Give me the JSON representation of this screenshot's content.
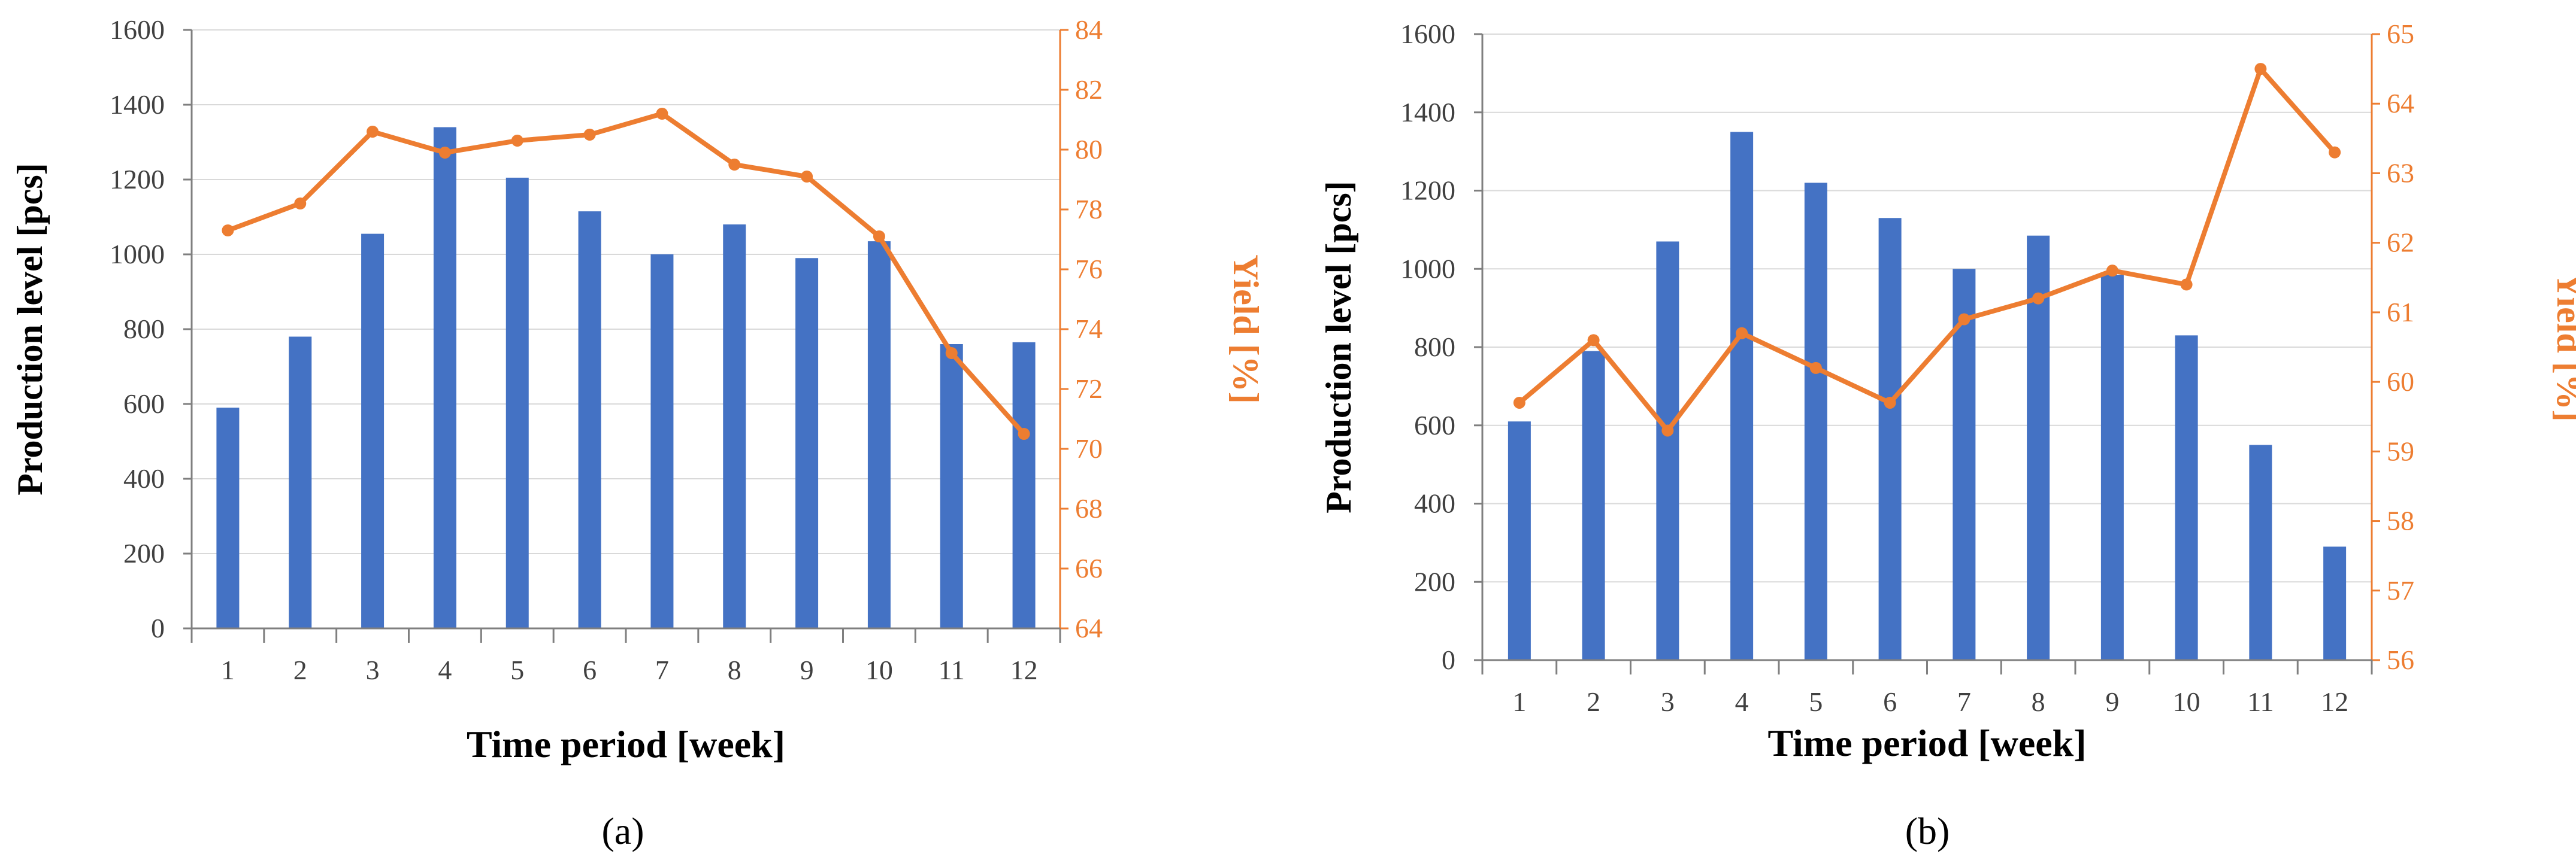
{
  "colors": {
    "bar": "#4472C4",
    "line": "#ED7D31",
    "grid": "#D9D9D9",
    "axis": "#7F7F7F"
  },
  "chart_data": [
    {
      "type": "bar+line",
      "caption": "(a)",
      "categories": [
        "1",
        "2",
        "3",
        "4",
        "5",
        "6",
        "7",
        "8",
        "9",
        "10",
        "11",
        "12"
      ],
      "xlabel": "Time period [week]",
      "ylabel": "Production level [pcs]",
      "y2label": "Yield [%]",
      "ylim": [
        0,
        1600
      ],
      "ytick_step": 200,
      "y2lim": [
        64,
        84
      ],
      "y2tick_step": 2,
      "grid": true,
      "series": [
        {
          "kind": "bar",
          "axis": "left",
          "values": [
            590,
            780,
            1055,
            1340,
            1205,
            1115,
            1000,
            1080,
            990,
            1035,
            760,
            765
          ]
        },
        {
          "kind": "line",
          "axis": "right",
          "values": [
            77.3,
            78.2,
            80.6,
            79.9,
            80.3,
            80.5,
            81.2,
            79.5,
            79.1,
            77.1,
            73.2,
            70.5
          ]
        }
      ]
    },
    {
      "type": "bar+line",
      "caption": "(b)",
      "categories": [
        "1",
        "2",
        "3",
        "4",
        "5",
        "6",
        "7",
        "8",
        "9",
        "10",
        "11",
        "12"
      ],
      "xlabel": "Time period [week]",
      "ylabel": "Production level [pcs]",
      "y2label": "Yield [%]",
      "ylim": [
        0,
        1600
      ],
      "ytick_step": 200,
      "y2lim": [
        56,
        65
      ],
      "y2tick_step": 1,
      "grid": true,
      "series": [
        {
          "kind": "bar",
          "axis": "left",
          "values": [
            610,
            790,
            1070,
            1350,
            1220,
            1130,
            1000,
            1085,
            985,
            830,
            550,
            290
          ]
        },
        {
          "kind": "line",
          "axis": "right",
          "values": [
            59.7,
            60.6,
            59.3,
            60.7,
            60.2,
            59.7,
            60.9,
            61.2,
            61.6,
            61.4,
            64.5,
            63.3
          ]
        }
      ]
    }
  ]
}
